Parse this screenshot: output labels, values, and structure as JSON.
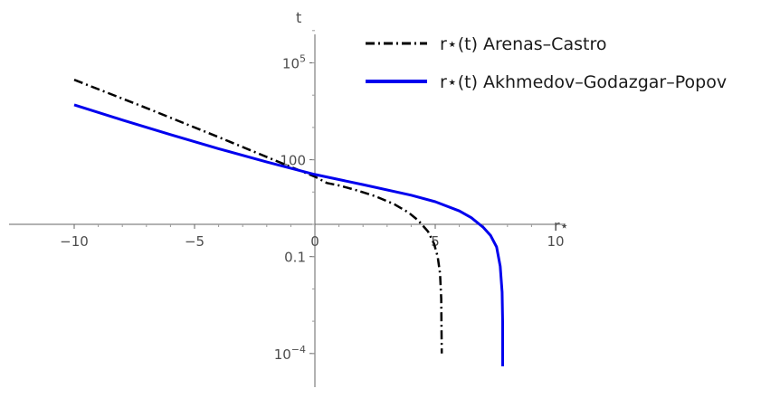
{
  "chart_data": {
    "type": "line",
    "title": "",
    "xlabel": "r⋆",
    "ylabel": "t",
    "xlim": [
      -10,
      10
    ],
    "y_scale": "log",
    "ylim": [
      0.0001,
      1000000
    ],
    "grid": false,
    "legend_position": "top-right",
    "x_ticks": [
      {
        "value": -10,
        "label": "−10"
      },
      {
        "value": -5,
        "label": "−5"
      },
      {
        "value": 0,
        "label": "0"
      },
      {
        "value": 5,
        "label": "5"
      },
      {
        "value": 10,
        "label": "10"
      }
    ],
    "y_ticks": [
      {
        "value": 100000,
        "base": "10",
        "exp": "5",
        "label": ""
      },
      {
        "value": 100,
        "base": "",
        "exp": "",
        "label": "100"
      },
      {
        "value": 0.1,
        "base": "",
        "exp": "",
        "label": "0.1"
      },
      {
        "value": 0.0001,
        "base": "10",
        "exp": "−4",
        "label": ""
      }
    ],
    "series": [
      {
        "name": "r⋆(t) Arenas–Castro",
        "color": "#000000",
        "dash": "dot-dash",
        "points": [
          {
            "x": -10,
            "y": 30000
          },
          {
            "x": -7,
            "y": 4000
          },
          {
            "x": -4,
            "y": 500
          },
          {
            "x": -1,
            "y": 60
          },
          {
            "x": 0,
            "y": 30
          },
          {
            "x": 0.5,
            "y": 19
          },
          {
            "x": 1,
            "y": 16
          },
          {
            "x": 1.7,
            "y": 11.5
          },
          {
            "x": 2.5,
            "y": 7.5
          },
          {
            "x": 3.3,
            "y": 4.2
          },
          {
            "x": 3.9,
            "y": 2.3
          },
          {
            "x": 4.3,
            "y": 1.3
          },
          {
            "x": 4.7,
            "y": 0.6
          },
          {
            "x": 4.95,
            "y": 0.25
          },
          {
            "x": 5.1,
            "y": 0.1
          },
          {
            "x": 5.2,
            "y": 0.03
          },
          {
            "x": 5.25,
            "y": 0.005
          },
          {
            "x": 5.27,
            "y": 0.0001
          }
        ]
      },
      {
        "name": "r⋆(t) Akhmedov–Godazgar–Popov",
        "color": "#0000ee",
        "dash": "solid",
        "points": [
          {
            "x": -10,
            "y": 5000
          },
          {
            "x": -8,
            "y": 1700
          },
          {
            "x": -6,
            "y": 600
          },
          {
            "x": -4,
            "y": 220
          },
          {
            "x": -2,
            "y": 85
          },
          {
            "x": 0,
            "y": 35
          },
          {
            "x": 2,
            "y": 17
          },
          {
            "x": 4,
            "y": 8
          },
          {
            "x": 5,
            "y": 5
          },
          {
            "x": 6,
            "y": 2.6
          },
          {
            "x": 6.5,
            "y": 1.6
          },
          {
            "x": 7,
            "y": 0.8
          },
          {
            "x": 7.3,
            "y": 0.45
          },
          {
            "x": 7.55,
            "y": 0.2
          },
          {
            "x": 7.7,
            "y": 0.05
          },
          {
            "x": 7.78,
            "y": 0.008
          },
          {
            "x": 7.8,
            "y": 0.0009
          },
          {
            "x": 7.8,
            "y": 4e-05
          }
        ]
      }
    ]
  }
}
